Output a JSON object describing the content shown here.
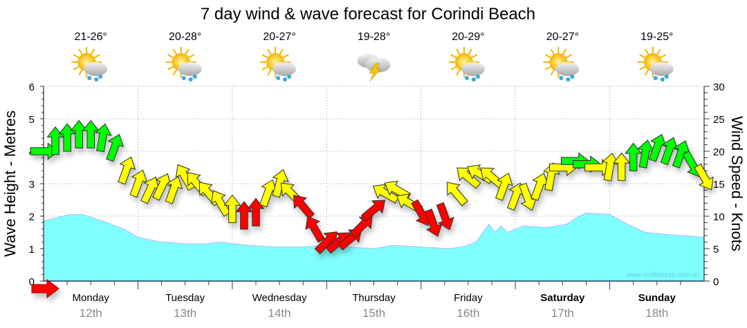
{
  "chart_data": {
    "type": "area+wind-arrows",
    "title": "7 day wind & wave forecast for Corindi Beach",
    "ylabel_left": "Wave Height - Metres",
    "ylabel_right": "Wind Speed - Knots",
    "ylim_left": [
      0,
      6
    ],
    "ylim_right": [
      0,
      30
    ],
    "yticks_left": [
      "0",
      "1",
      "2",
      "3",
      "4",
      "5",
      "6"
    ],
    "yticks_right": [
      "0",
      "5",
      "10",
      "15",
      "20",
      "25",
      "30"
    ],
    "xlim_hours": [
      0,
      168
    ],
    "grid": true,
    "watermark": "www.seabreeze.com.au",
    "colors": {
      "wave": "#80ffff",
      "wave_edge": "#b0b8ff",
      "strong": "#00ff00",
      "moderate": "#ffff00",
      "light": "#ff0000"
    },
    "days": [
      {
        "weekday": "Monday",
        "date": "12th",
        "bold": false,
        "temp": "21-26°",
        "icon": "sun-cloud-rain-icon"
      },
      {
        "weekday": "Tuesday",
        "date": "13th",
        "bold": false,
        "temp": "20-28°",
        "icon": "sun-cloud-rain-icon"
      },
      {
        "weekday": "Wednesday",
        "date": "14th",
        "bold": false,
        "temp": "20-27°",
        "icon": "sun-cloud-rain-icon"
      },
      {
        "weekday": "Thursday",
        "date": "15th",
        "bold": false,
        "temp": "19-28°",
        "icon": "thunderstorm-icon"
      },
      {
        "weekday": "Friday",
        "date": "16th",
        "bold": false,
        "temp": "20-29°",
        "icon": "sun-cloud-rain-icon"
      },
      {
        "weekday": "Saturday",
        "date": "17th",
        "bold": true,
        "temp": "20-27°",
        "icon": "sun-cloud-rain-icon"
      },
      {
        "weekday": "Sunday",
        "date": "18th",
        "bold": true,
        "temp": "19-25°",
        "icon": "sun-cloud-rain-icon"
      }
    ],
    "wave_height": {
      "hours": [
        0,
        6.5,
        10,
        15,
        20.5,
        24,
        29,
        36,
        41.5,
        45,
        52,
        59,
        66,
        72,
        77,
        84,
        89,
        96,
        103,
        106.5,
        110,
        112,
        113.3,
        114.8,
        116.3,
        118,
        122,
        128,
        133,
        135.5,
        138,
        144,
        148.5,
        153,
        157.5,
        168
      ],
      "metres": [
        1.85,
        2.05,
        2.05,
        1.85,
        1.6,
        1.35,
        1.22,
        1.15,
        1.15,
        1.2,
        1.1,
        1.05,
        1.05,
        1.1,
        1.05,
        1.0,
        1.1,
        1.05,
        1.0,
        1.05,
        1.2,
        1.55,
        1.75,
        1.5,
        1.7,
        1.5,
        1.7,
        1.65,
        1.75,
        1.95,
        2.1,
        2.05,
        1.75,
        1.5,
        1.45,
        1.35
      ]
    },
    "wind": {
      "hours": [
        0,
        3,
        6,
        9,
        12,
        15,
        18,
        21,
        24,
        27,
        30,
        33,
        36,
        39,
        42,
        45,
        48,
        51,
        54,
        57,
        60,
        63,
        66,
        69,
        72,
        75,
        78,
        81,
        84,
        87,
        90,
        93,
        96,
        99,
        102,
        105,
        108,
        111,
        114,
        117,
        120,
        123,
        126,
        129,
        132,
        135,
        138,
        141,
        144,
        147,
        150,
        153,
        156,
        159,
        162,
        165,
        168
      ],
      "knots": [
        20,
        21.5,
        22,
        22.5,
        22.5,
        22,
        20.5,
        17,
        15,
        14,
        14.5,
        14,
        16,
        15,
        13.5,
        12,
        11,
        10,
        10.5,
        13.5,
        15,
        13.5,
        11.5,
        8,
        6,
        6,
        6.5,
        8.5,
        11,
        13.5,
        14,
        12,
        10.5,
        9,
        10,
        13.5,
        16,
        16.5,
        16,
        14.5,
        13,
        13,
        14.5,
        16,
        17.5,
        18.5,
        18,
        17.5,
        17.5,
        17.5,
        19,
        19.5,
        20.5,
        20,
        19.5,
        18,
        16
      ],
      "direction_deg": [
        90,
        0,
        0,
        0,
        0,
        10,
        20,
        20,
        20,
        25,
        25,
        20,
        -30,
        -40,
        -40,
        -30,
        0,
        0,
        0,
        20,
        15,
        -45,
        -40,
        -30,
        45,
        50,
        50,
        45,
        50,
        -60,
        -60,
        -60,
        150,
        160,
        160,
        -40,
        -50,
        -60,
        -50,
        20,
        20,
        160,
        20,
        10,
        90,
        90,
        90,
        90,
        10,
        0,
        0,
        10,
        20,
        20,
        20,
        150,
        150
      ],
      "category": [
        "strong",
        "strong",
        "strong",
        "strong",
        "strong",
        "strong",
        "strong",
        "moderate",
        "moderate",
        "moderate",
        "moderate",
        "moderate",
        "moderate",
        "moderate",
        "moderate",
        "moderate",
        "moderate",
        "light",
        "light",
        "moderate",
        "moderate",
        "moderate",
        "light",
        "light",
        "light",
        "light",
        "light",
        "light",
        "light",
        "moderate",
        "moderate",
        "moderate",
        "light",
        "light",
        "light",
        "moderate",
        "moderate",
        "moderate",
        "moderate",
        "moderate",
        "moderate",
        "moderate",
        "moderate",
        "moderate",
        "moderate",
        "strong",
        "strong",
        "moderate",
        "moderate",
        "moderate",
        "strong",
        "strong",
        "strong",
        "strong",
        "strong",
        "strong",
        "moderate"
      ]
    },
    "current_wind_marker": "red-arrow-right"
  }
}
